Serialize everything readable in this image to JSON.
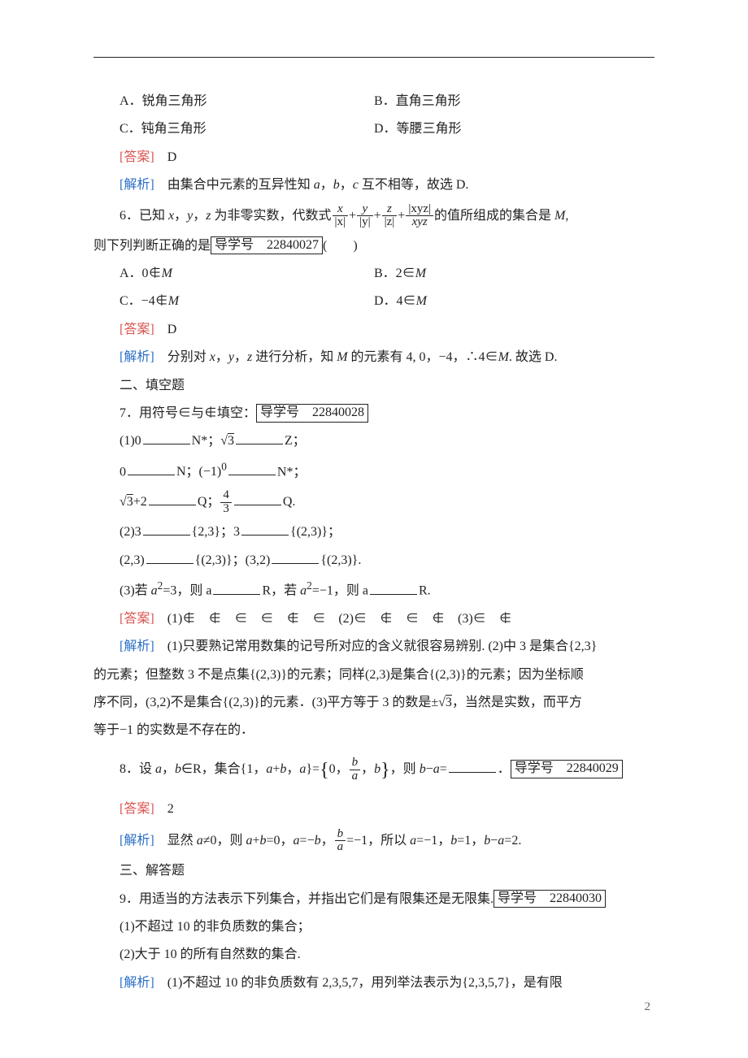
{
  "colors": {
    "text": "#222222",
    "answer_label": "#d9534f",
    "analysis_label": "#2a6ec6",
    "rule": "#222222",
    "bg": "#ffffff",
    "pagenum": "#666666"
  },
  "typography": {
    "body_font": "SimSun",
    "body_size_pt": 12,
    "line_height": 2.15,
    "indent_em": 2
  },
  "labels": {
    "answer": "[答案]",
    "analysis": "[解析]",
    "daoxue_prefix": "导学号　"
  },
  "q5": {
    "optA": "A．锐角三角形",
    "optB": "B．直角三角形",
    "optC": "C．钝角三角形",
    "optD": "D．等腰三角形",
    "answer": "D",
    "analysis": "由集合中元素的互异性知 a，b，c 互不相等，故选 D."
  },
  "q6": {
    "stem_pre": "6．已知 x，y，z 为非零实数，代数式",
    "frac1_num": "x",
    "frac1_den": "|x|",
    "frac2_num": "y",
    "frac2_den": "|y|",
    "frac3_num": "z",
    "frac3_den": "|z|",
    "frac4_num": "|xyz|",
    "frac4_den": "xyz",
    "stem_post1": "的值所组成的集合是 M,",
    "stem_post2": "则下列判断正确的是",
    "daoxue": "22840027",
    "paren": "(　　)",
    "optA": "A．0∉M",
    "optB": "B．2∈M",
    "optC": "C．−4∉M",
    "optD": "D．4∈M",
    "answer": "D",
    "analysis": "分别对 x，y，z 进行分析，知 M 的元素有 4, 0，−4，∴4∈M. 故选 D."
  },
  "sec2": "二、填空题",
  "q7": {
    "stem": "7．用符号∈与∉填空：",
    "daoxue": "22840028",
    "line1_a": "(1)0",
    "line1_b": "N*；",
    "line1_c": "√3",
    "line1_d": "Z；",
    "line2_a": "0",
    "line2_b": "N；(−1)",
    "line2_b_sup": "0",
    "line2_c": "N*；",
    "line3_a": "√3+2",
    "line3_b": "Q；",
    "line3_frac_num": "4",
    "line3_frac_den": "3",
    "line3_c": "Q.",
    "line4": "(2)3",
    "line4_b": "{2,3}；3",
    "line4_c": "{(2,3)}；",
    "line5": "(2,3)",
    "line5_b": "{(2,3)}；(3,2)",
    "line5_c": "{(2,3)}.",
    "line6_a": "(3)若 a",
    "line6_a_sup": "2",
    "line6_b": "=3，则 a",
    "line6_c": "R，若 a",
    "line6_c_sup": "2",
    "line6_d": "=−1，则 a",
    "line6_e": "R.",
    "answer": "(1)∉　∉　∈　∈　∉　∈　(2)∈　∉　∈　∉　(3)∈　∉",
    "analysis": "(1)只要熟记常用数集的记号所对应的含义就很容易辨别. (2)中 3 是集合{2,3}的元素；但整数 3 不是点集{(2,3)}的元素；同样(2,3)是集合{(2,3)}的元素；因为坐标顺序不同，(3,2)不是集合{(2,3)}的元素．(3)平方等于 3 的数是±√3，当然是实数，而平方等于−1 的实数是不存在的．"
  },
  "q8": {
    "stem_a": "8．设 a，b∈R，集合{1，a+b，a}=",
    "set_open": "{",
    "set_items_pre": "0，",
    "frac_num": "b",
    "frac_den": "a",
    "set_items_post": "，b",
    "set_close": "}",
    "stem_b": "，则 b−a=",
    "stem_c": "．",
    "daoxue": "22840029",
    "answer": "2",
    "analysis_a": "显然 a≠0，则 a+b=0，a=−b，",
    "ana_frac_num": "b",
    "ana_frac_den": "a",
    "analysis_b": "=−1，所以 a=−1，b=1，b−a=2."
  },
  "sec3": "三、解答题",
  "q9": {
    "stem": "9．用适当的方法表示下列集合，并指出它们是有限集还是无限集.",
    "daoxue": "22840030",
    "sub1": "(1)不超过 10 的非负质数的集合；",
    "sub2": "(2)大于 10 的所有自然数的集合.",
    "analysis": "(1)不超过 10 的非负质数有 2,3,5,7，用列举法表示为{2,3,5,7}，是有限"
  },
  "pagenum": "2"
}
